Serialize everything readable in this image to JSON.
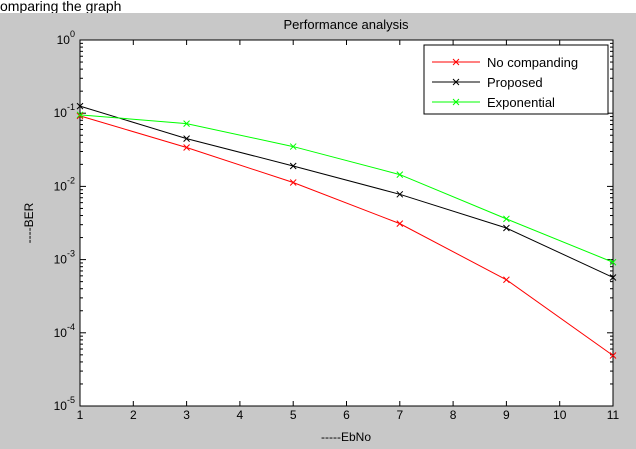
{
  "header_text": "omparing the graph",
  "chart_data": {
    "type": "line",
    "title": "Performance analysis",
    "xlabel": "-----EbNo",
    "ylabel": "----BER",
    "xlim": [
      1,
      11
    ],
    "ylim_log10": [
      -5,
      0
    ],
    "yscale": "log",
    "grid": false,
    "legend_position": "top-right",
    "x_ticks": [
      "1",
      "2",
      "3",
      "4",
      "5",
      "6",
      "7",
      "8",
      "9",
      "10",
      "11"
    ],
    "y_ticks": [
      {
        "base": "10",
        "exp": "0"
      },
      {
        "base": "10",
        "exp": "-1"
      },
      {
        "base": "10",
        "exp": "-2"
      },
      {
        "base": "10",
        "exp": "-3"
      },
      {
        "base": "10",
        "exp": "-4"
      },
      {
        "base": "10",
        "exp": "-5"
      }
    ],
    "x": [
      1,
      3,
      5,
      7,
      9,
      11
    ],
    "series": [
      {
        "name": "No companding",
        "color": "#ff0000",
        "marker": "x",
        "values": [
          0.092,
          0.034,
          0.0113,
          0.0031,
          0.00053,
          4.9e-05
        ]
      },
      {
        "name": "Proposed",
        "color": "#000000",
        "marker": "x",
        "values": [
          0.125,
          0.045,
          0.019,
          0.0078,
          0.0027,
          0.00057
        ]
      },
      {
        "name": "Exponential",
        "color": "#00ff00",
        "marker": "x",
        "values": [
          0.095,
          0.072,
          0.035,
          0.0145,
          0.0036,
          0.00092
        ]
      }
    ]
  }
}
